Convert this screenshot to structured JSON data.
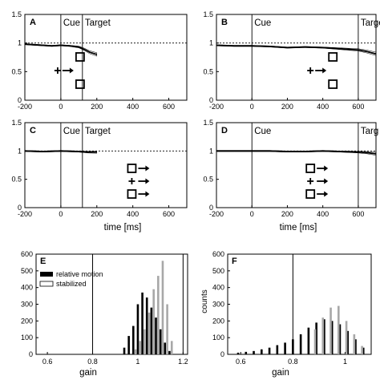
{
  "figure": {
    "xlabel": "time [ms]",
    "event_cue": "Cue",
    "event_target": "Target",
    "event_target_clipped": "Targ",
    "hist_xlabel": "gain",
    "hist_ylabel": "counts",
    "legend_relative": "relative motion",
    "legend_stabilized": "stabilized"
  },
  "chart_data": [
    {
      "type": "line",
      "panel": "A",
      "xlim": [
        -200,
        700
      ],
      "ylim": [
        0,
        1.5
      ],
      "xticks": [
        "-200",
        "0",
        "200",
        "400",
        "600"
      ],
      "yticks": [
        "0",
        "0.5",
        "1",
        "1.5"
      ],
      "reference_line": 1,
      "events": {
        "Cue": 0,
        "Target": 120
      },
      "x": [
        -200,
        -150,
        -100,
        -50,
        0,
        50,
        100,
        130,
        160,
        200
      ],
      "y": [
        0.98,
        0.97,
        0.96,
        0.95,
        0.96,
        0.95,
        0.93,
        0.89,
        0.84,
        0.8
      ],
      "y_error": [
        0.01,
        0.01,
        0.01,
        0.01,
        0.01,
        0.01,
        0.015,
        0.02,
        0.025,
        0.03
      ]
    },
    {
      "type": "line",
      "panel": "B",
      "xlim": [
        -200,
        700
      ],
      "ylim": [
        0,
        1.5
      ],
      "xticks": [
        "-200",
        "0",
        "200",
        "400",
        "600"
      ],
      "yticks": [
        "0",
        "0.5",
        "1",
        "1.5"
      ],
      "reference_line": 1,
      "events": {
        "Cue": 0,
        "Target": 600
      },
      "x": [
        -200,
        -100,
        0,
        100,
        200,
        300,
        400,
        500,
        600,
        650,
        700
      ],
      "y": [
        0.96,
        0.95,
        0.95,
        0.94,
        0.92,
        0.93,
        0.92,
        0.9,
        0.88,
        0.85,
        0.81
      ],
      "y_error": [
        0.01,
        0.01,
        0.01,
        0.01,
        0.01,
        0.01,
        0.01,
        0.015,
        0.02,
        0.025,
        0.03
      ]
    },
    {
      "type": "line",
      "panel": "C",
      "xlim": [
        -200,
        700
      ],
      "ylim": [
        0,
        1.5
      ],
      "xticks": [
        "-200",
        "0",
        "200",
        "400",
        "600"
      ],
      "yticks": [
        "0",
        "0.5",
        "1",
        "1.5"
      ],
      "reference_line": 1,
      "events": {
        "Cue": 0,
        "Target": 120
      },
      "x": [
        -200,
        -100,
        0,
        100,
        150,
        200
      ],
      "y": [
        1.0,
        0.99,
        1.0,
        0.99,
        0.98,
        0.98
      ],
      "y_error": [
        0.01,
        0.01,
        0.01,
        0.01,
        0.015,
        0.02
      ]
    },
    {
      "type": "line",
      "panel": "D",
      "xlim": [
        -200,
        700
      ],
      "ylim": [
        0,
        1.5
      ],
      "xticks": [
        "-200",
        "0",
        "200",
        "400",
        "600"
      ],
      "yticks": [
        "0",
        "0.5",
        "1",
        "1.5"
      ],
      "reference_line": 1,
      "events": {
        "Cue": 0,
        "Target": 600
      },
      "x": [
        -200,
        -100,
        0,
        100,
        200,
        300,
        400,
        500,
        600,
        650,
        700
      ],
      "y": [
        1.0,
        1.0,
        1.0,
        1.0,
        0.99,
        0.99,
        1.0,
        0.99,
        0.98,
        0.97,
        0.95
      ],
      "y_error": [
        0.01,
        0.01,
        0.01,
        0.01,
        0.01,
        0.01,
        0.01,
        0.01,
        0.015,
        0.02,
        0.025
      ]
    },
    {
      "type": "bar",
      "panel": "E",
      "xlim": [
        0.55,
        1.22
      ],
      "ylim": [
        0,
        600
      ],
      "xticks": [
        "0.6",
        "0.8",
        "1",
        "1.2"
      ],
      "yticks": [
        "0",
        "100",
        "200",
        "300",
        "400",
        "500",
        "600"
      ],
      "vlines": [
        0.8,
        1.2
      ],
      "legend": "top-left",
      "series": [
        {
          "name": "relative motion",
          "x": [
            0.94,
            0.96,
            0.98,
            1.0,
            1.02,
            1.04,
            1.06,
            1.08,
            1.1,
            1.12,
            1.14
          ],
          "values": [
            40,
            110,
            170,
            300,
            370,
            340,
            280,
            220,
            150,
            70,
            20
          ]
        },
        {
          "name": "stabilized",
          "x": [
            0.99,
            1.01,
            1.03,
            1.05,
            1.07,
            1.09,
            1.11,
            1.13,
            1.15
          ],
          "values": [
            30,
            80,
            150,
            250,
            390,
            470,
            560,
            300,
            80
          ]
        }
      ]
    },
    {
      "type": "bar",
      "panel": "F",
      "xlim": [
        0.55,
        1.1
      ],
      "ylim": [
        0,
        600
      ],
      "xticks": [
        "0.6",
        "0.8",
        "1"
      ],
      "yticks": [
        "0",
        "100",
        "200",
        "300",
        "400",
        "500",
        "600"
      ],
      "vlines": [
        0.8
      ],
      "series": [
        {
          "name": "relative motion",
          "x": [
            0.59,
            0.62,
            0.65,
            0.68,
            0.71,
            0.74,
            0.77,
            0.8,
            0.83,
            0.86,
            0.89,
            0.92,
            0.95,
            0.98,
            1.01,
            1.04,
            1.07
          ],
          "values": [
            10,
            15,
            20,
            30,
            40,
            55,
            70,
            90,
            120,
            160,
            190,
            210,
            200,
            180,
            140,
            90,
            40
          ]
        },
        {
          "name": "stabilized",
          "x": [
            0.885,
            0.915,
            0.945,
            0.975,
            1.005,
            1.035,
            1.065
          ],
          "values": [
            150,
            220,
            280,
            290,
            200,
            120,
            50
          ]
        }
      ]
    }
  ]
}
